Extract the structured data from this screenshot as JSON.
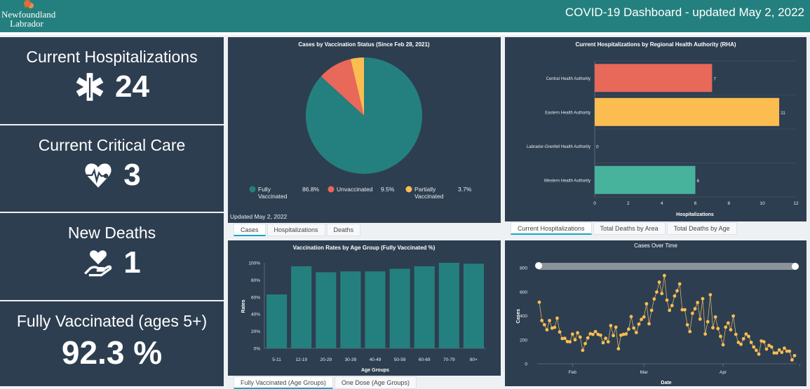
{
  "header": {
    "logo_line1": "Newfoundland",
    "logo_line2": "Labrador",
    "title": "COVID-19 Dashboard - updated May 2, 2022"
  },
  "stats": [
    {
      "label": "Current Hospitalizations",
      "value": "24",
      "icon": "star-of-life-icon"
    },
    {
      "label": "Current Critical Care",
      "value": "3",
      "icon": "heart-pulse-icon"
    },
    {
      "label": "New Deaths",
      "value": "1",
      "icon": "hand-heart-icon"
    },
    {
      "label": "Fully Vaccinated (ages 5+)",
      "value": "92.3 %"
    }
  ],
  "colors": {
    "teal": "#24807e",
    "red": "#e8685a",
    "yellow": "#fbbd4f",
    "green": "#47b39d",
    "panel": "#2d3e50"
  },
  "pie_tabs": [
    "Cases",
    "Hospitalizations",
    "Deaths"
  ],
  "rha_tabs": [
    "Current Hospitalizations",
    "Total Deaths by Area",
    "Total Deaths by Age"
  ],
  "age_tabs": [
    "Fully Vaccinated (Age Groups)",
    "One Dose (Age Groups)"
  ],
  "pie_updated": "Updated May 2, 2022",
  "chart_data": [
    {
      "type": "pie",
      "title": "Cases by Vaccination Status (Since Feb 28, 2021)",
      "slices": [
        {
          "label": "Fully Vaccinated",
          "value": 86.8,
          "display": "86.8%",
          "color": "#24807e"
        },
        {
          "label": "Unvaccinated",
          "value": 9.5,
          "display": "9.5%",
          "color": "#e8685a"
        },
        {
          "label": "Partially Vaccinated",
          "value": 3.7,
          "display": "3.7%",
          "color": "#fbbd4f"
        }
      ]
    },
    {
      "type": "bar",
      "orientation": "horizontal",
      "title": "Current Hospitalizations by Regional Health Authority (RHA)",
      "categories": [
        "Central Health Authority",
        "Eastern Health Authority",
        "Labrador-Grenfell Health Authority",
        "Western Health Authority"
      ],
      "values": [
        7,
        11,
        0,
        6
      ],
      "colors": [
        "#e8685a",
        "#fbbd4f",
        "#47b39d",
        "#47b39d"
      ],
      "xlabel": "Hospitalizations",
      "xlim": [
        0,
        12
      ],
      "xticks": [
        0,
        2,
        4,
        6,
        8,
        10,
        12
      ]
    },
    {
      "type": "bar",
      "title": "Vaccination Rates by Age Group (Fully Vaccinated %)",
      "categories": [
        "5-11",
        "12-19",
        "20-29",
        "30-39",
        "40-49",
        "50-59",
        "60-69",
        "70-79",
        "80+"
      ],
      "values": [
        63,
        96,
        89,
        90,
        90,
        93,
        96,
        100,
        99
      ],
      "xlabel": "Age Groups",
      "ylabel": "Rates",
      "ylim": [
        0,
        100
      ],
      "yticks": [
        "0%",
        "20%",
        "40%",
        "60%",
        "80%",
        "100%"
      ]
    },
    {
      "type": "line",
      "title": "Cases Over Time",
      "xlabel": "Date",
      "ylabel": "Cases",
      "ylim": [
        0,
        800
      ],
      "yticks": [
        0,
        200,
        400,
        600,
        800
      ],
      "month_ticks": [
        {
          "label": "Feb",
          "day": 13
        },
        {
          "label": "Mar",
          "day": 41
        },
        {
          "label": "Apr",
          "day": 72
        }
      ],
      "month_boundaries": [
        13,
        41,
        72,
        102
      ],
      "values": [
        513,
        360,
        325,
        283,
        360,
        297,
        303,
        380,
        265,
        210,
        212,
        185,
        183,
        247,
        200,
        258,
        222,
        112,
        168,
        215,
        250,
        245,
        268,
        245,
        238,
        175,
        212,
        183,
        318,
        235,
        305,
        125,
        238,
        245,
        248,
        288,
        393,
        298,
        260,
        330,
        370,
        390,
        500,
        333,
        445,
        540,
        598,
        680,
        585,
        735,
        530,
        445,
        485,
        565,
        608,
        665,
        450,
        450,
        325,
        268,
        420,
        458,
        510,
        372,
        542,
        248,
        350,
        575,
        300,
        390,
        293,
        228,
        158,
        305,
        340,
        283,
        398,
        245,
        178,
        162,
        208,
        248,
        228,
        178,
        140,
        112,
        80,
        190,
        183,
        122,
        153,
        140,
        90,
        90,
        115,
        95,
        130,
        105,
        105,
        32,
        68
      ]
    }
  ]
}
